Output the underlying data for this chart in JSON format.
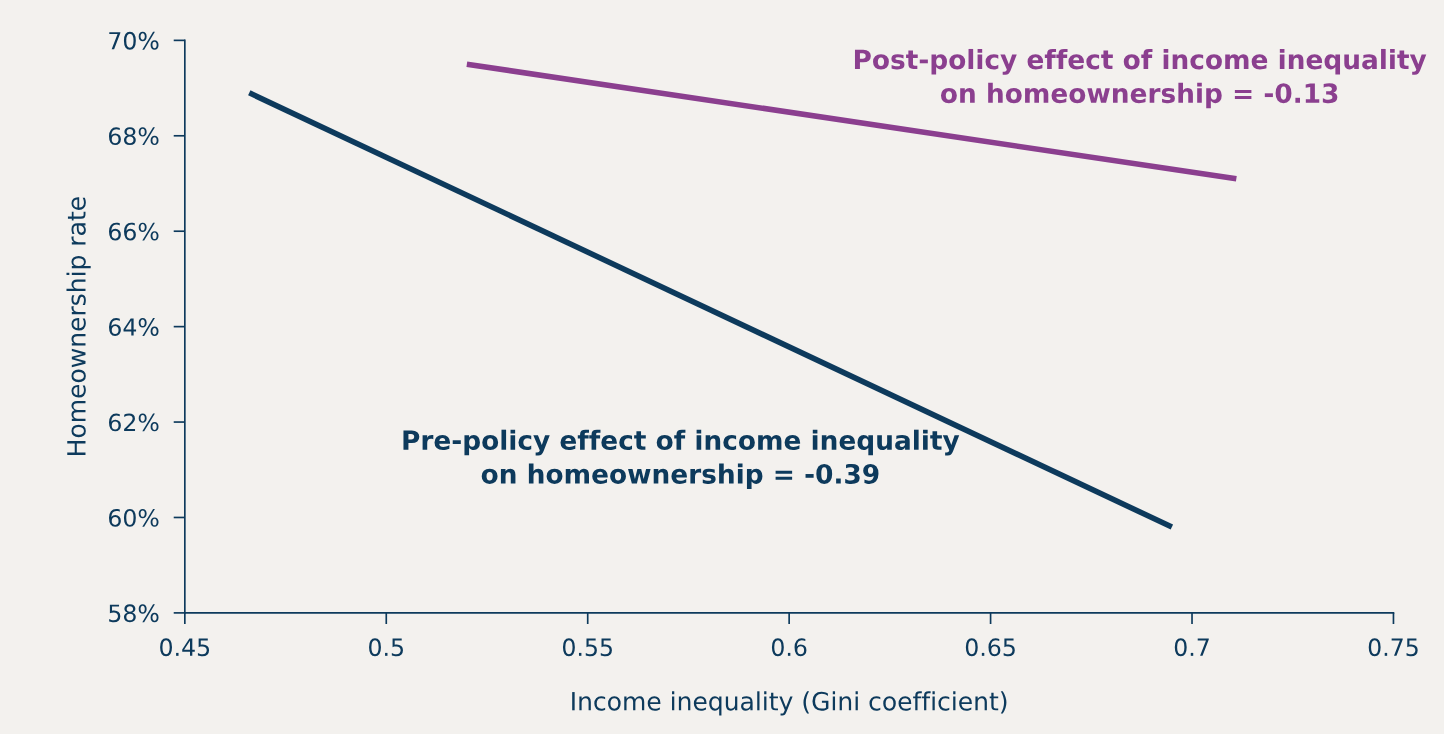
{
  "chart_data": {
    "type": "line",
    "xlabel": "Income inequality (Gini coefficient)",
    "ylabel": "Homeownership rate",
    "xlim": [
      0.45,
      0.75
    ],
    "xticks": [
      0.45,
      0.5,
      0.55,
      0.6,
      0.65,
      0.7,
      0.75
    ],
    "ylim": [
      58,
      70
    ],
    "yticks": [
      {
        "value": 58,
        "label": "58%"
      },
      {
        "value": 60,
        "label": "60%"
      },
      {
        "value": 62,
        "label": "62%"
      },
      {
        "value": 64,
        "label": "64%"
      },
      {
        "value": 66,
        "label": "66%"
      },
      {
        "value": 68,
        "label": "68%"
      },
      {
        "value": 70,
        "label": "70%"
      }
    ],
    "grid": false,
    "legend": false,
    "marker": "none",
    "line_style": "solid",
    "series": [
      {
        "name": "Pre-policy effect of income inequality\non homeownership = -0.39",
        "color": "#0d3a5c",
        "x": [
          0.466,
          0.695
        ],
        "values": [
          68.9,
          59.8
        ]
      },
      {
        "name": "Post-policy effect of income inequality\non homeownership = -0.13",
        "color": "#8b3f8f",
        "x": [
          0.52,
          0.711
        ],
        "values": [
          69.5,
          67.1
        ]
      }
    ]
  }
}
